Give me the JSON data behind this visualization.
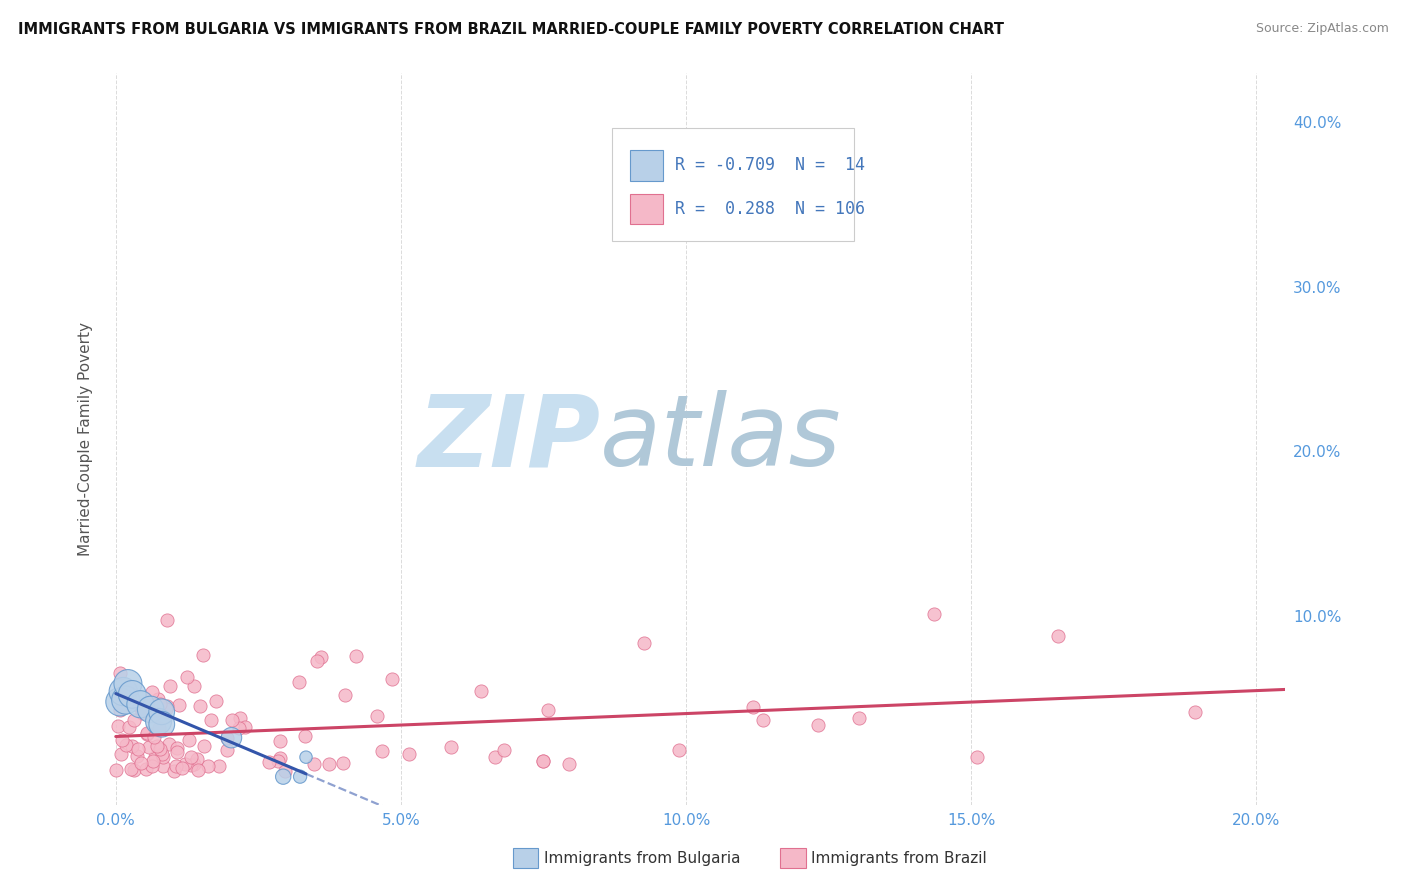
{
  "title": "IMMIGRANTS FROM BULGARIA VS IMMIGRANTS FROM BRAZIL MARRIED-COUPLE FAMILY POVERTY CORRELATION CHART",
  "source": "Source: ZipAtlas.com",
  "ylabel": "Married-Couple Family Poverty",
  "xlabel_ticks": [
    "0.0%",
    "5.0%",
    "10.0%",
    "15.0%",
    "20.0%"
  ],
  "xlabel_vals": [
    0.0,
    0.05,
    0.1,
    0.15,
    0.2
  ],
  "ylabel_ticks": [
    "10.0%",
    "20.0%",
    "30.0%",
    "40.0%"
  ],
  "ylabel_vals": [
    0.1,
    0.2,
    0.3,
    0.4
  ],
  "xlim": [
    -0.002,
    0.205
  ],
  "ylim": [
    -0.015,
    0.43
  ],
  "r_bulgaria": -0.709,
  "n_bulgaria": 14,
  "r_brazil": 0.288,
  "n_brazil": 106,
  "color_bulgaria_fill": "#b8d0e8",
  "color_brazil_fill": "#f5b8c8",
  "color_bulgaria_edge": "#6699cc",
  "color_brazil_edge": "#e07090",
  "color_bulgaria_line": "#3355aa",
  "color_brazil_line": "#cc4466",
  "color_axis_labels": "#5599dd",
  "watermark_zip": "ZIP",
  "watermark_atlas": "atlas",
  "watermark_color_zip": "#c8dff0",
  "watermark_color_atlas": "#b0c8d8",
  "legend_r_color": "#4477bb",
  "grid_color": "#cccccc",
  "title_color": "#111111",
  "source_color": "#888888",
  "ylabel_color": "#555555"
}
